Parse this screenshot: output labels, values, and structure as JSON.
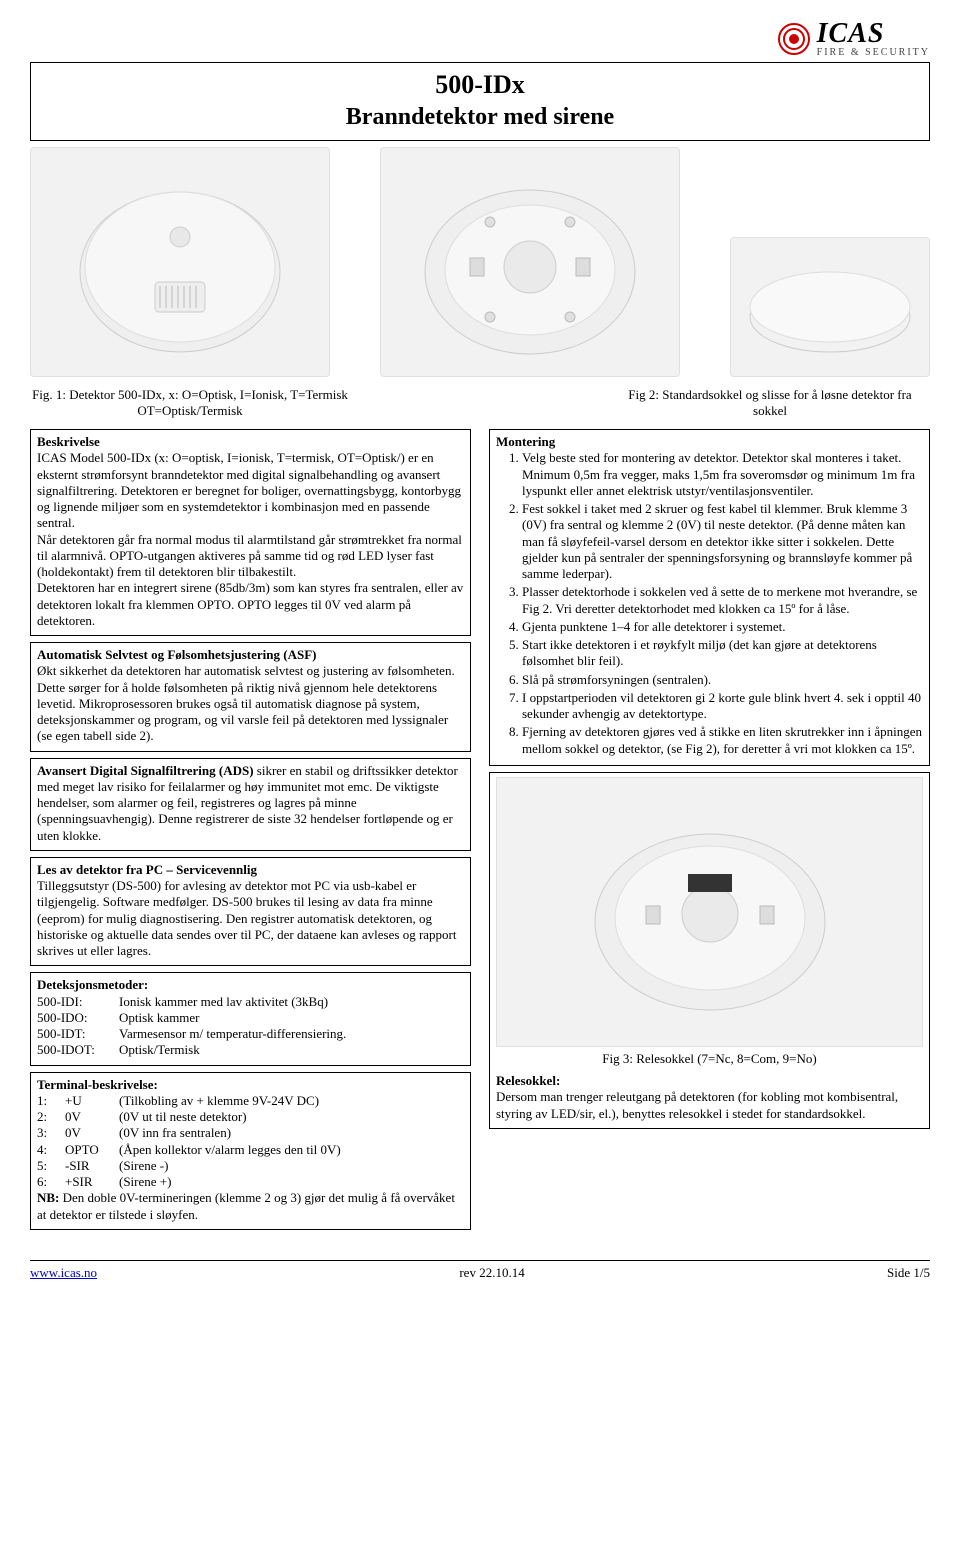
{
  "logo": {
    "brand": "ICAS",
    "sub": "FIRE  &  SECURITY"
  },
  "title": {
    "line1": "500-IDx",
    "line2": "Branndetektor med sirene"
  },
  "figcaps": {
    "fig1": "Fig. 1: Detektor 500-IDx, x: O=Optisk, I=Ionisk, T=Termisk OT=Optisk/Termisk",
    "fig2": "Fig 2: Standardsokkel og slisse for å løsne detektor fra sokkel"
  },
  "beskrivelse": {
    "head": "Beskrivelse",
    "p1": "ICAS Model 500-IDx (x: O=optisk, I=ionisk, T=termisk, OT=Optisk/) er en eksternt strømforsynt branndetektor med digital signalbehandling og avansert signalfiltrering. Detektoren er beregnet for boliger, overnattingsbygg, kontorbygg og lignende miljøer som en systemdetektor i kombinasjon med en passende sentral.",
    "p2": "Når detektoren går fra normal modus til alarmtilstand går strømtrekket fra normal til alarmnivå. OPTO-utgangen aktiveres på samme tid og rød LED lyser fast (holdekontakt) frem til detektoren blir tilbakestilt.",
    "p3": "Detektoren har en integrert sirene (85db/3m) som kan styres fra sentralen, eller av detektoren lokalt fra klemmen OPTO. OPTO legges til 0V ved alarm på detektoren."
  },
  "asf": {
    "head": "Automatisk Selvtest og Følsomhetsjustering (ASF)",
    "body": "Økt sikkerhet da detektoren har automatisk selvtest og justering av følsomheten. Dette sørger for å holde følsomheten på riktig nivå gjennom hele detektorens levetid. Mikroprosessoren brukes også til automatisk diagnose på system, deteksjonskammer og program, og vil varsle feil på detektoren med lyssignaler (se egen tabell side 2)."
  },
  "ads": {
    "head": "Avansert Digital Signalfiltrering (ADS) ",
    "body": "sikrer en stabil og driftssikker detektor med meget lav risiko for feilalarmer og høy immunitet mot emc. De viktigste hendelser, som alarmer og feil, registreres og lagres på minne (spenningsuavhengig). Denne registrerer de siste 32 hendelser fortløpende og er uten klokke."
  },
  "pc": {
    "head": "Les av detektor fra PC – Servicevennlig",
    "body": "Tilleggsutstyr (DS-500) for avlesing av detektor mot PC via usb-kabel er tilgjengelig. Software medfølger. DS-500 brukes til lesing av data fra minne (eeprom) for mulig diagnostisering. Den registrer automatisk detektoren, og historiske og aktuelle data sendes over til PC, der dataene kan avleses og rapport skrives ut eller lagres."
  },
  "detmet": {
    "head": "Deteksjonsmetoder:",
    "rows": [
      {
        "k": "500-IDI:",
        "v": "Ionisk kammer med lav aktivitet (3kBq)"
      },
      {
        "k": "500-IDO:",
        "v": "Optisk kammer"
      },
      {
        "k": "500-IDT:",
        "v": "Varmesensor m/ temperatur-differensiering."
      },
      {
        "k": "500-IDOT:",
        "v": "Optisk/Termisk"
      }
    ]
  },
  "term": {
    "head": "Terminal-beskrivelse:",
    "rows": [
      {
        "n": "1:",
        "s": "+U",
        "v": "(Tilkobling av + klemme 9V-24V DC)"
      },
      {
        "n": "2:",
        "s": "0V",
        "v": "(0V ut til neste detektor)"
      },
      {
        "n": "3:",
        "s": "0V",
        "v": "(0V inn fra sentralen)"
      },
      {
        "n": "4:",
        "s": "OPTO",
        "v": "(Åpen kollektor  v/alarm legges den til 0V)"
      },
      {
        "n": "5:",
        "s": "-SIR",
        "v": "(Sirene  -)"
      },
      {
        "n": "6:",
        "s": "+SIR",
        "v": "(Sirene  +)"
      }
    ],
    "nb_head": "NB: ",
    "nb": "Den doble 0V-termineringen (klemme 2 og 3) gjør det mulig å få overvåket at detektor er tilstede i sløyfen."
  },
  "montering": {
    "head": "Montering",
    "items": [
      "Velg beste sted for montering av detektor. Detektor skal monteres i taket. Mnimum 0,5m fra vegger, maks 1,5m fra soveromsdør og minimum 1m fra lyspunkt eller annet elektrisk utstyr/ventilasjonsventiler.",
      "Fest sokkel i taket med 2 skruer og fest kabel til klemmer. Bruk klemme 3 (0V) fra sentral og klemme 2 (0V) til neste detektor. (På denne måten kan man få sløyfefeil-varsel dersom en detektor ikke sitter i sokkelen. Dette gjelder kun på sentraler der spenningsforsyning og brannsløyfe kommer på samme lederpar).",
      "Plasser detektorhode i sokkelen ved å sette de to merkene mot hverandre, se Fig 2. Vri deretter detektorhodet med klokken ca 15º for å låse.",
      "Gjenta punktene 1–4 for alle detektorer i systemet.",
      "Start ikke detektoren i et røykfylt miljø (det kan gjøre at detektorens følsomhet blir feil).",
      "Slå på strømforsyningen (sentralen).",
      "I oppstartperioden vil detektoren gi 2 korte gule blink hvert 4. sek i opptil 40 sekunder avhengig av detektortype.",
      "Fjerning av detektoren gjøres ved å stikke en liten skrutrekker inn i åpningen mellom sokkel og detektor, (se Fig 2), for deretter å vri mot klokken ca 15º."
    ]
  },
  "rel": {
    "figcap": "Fig 3: Relesokkel (7=Nc, 8=Com, 9=No)",
    "head": "Relesokkel:",
    "body": "Dersom man trenger releutgang på detektoren (for kobling mot kombisentral, styring av LED/sir, el.), benyttes relesokkel i stedet for standardsokkel."
  },
  "footer": {
    "url": "www.icas.no",
    "rev": "rev 22.10.14",
    "page": "Side 1/5"
  }
}
